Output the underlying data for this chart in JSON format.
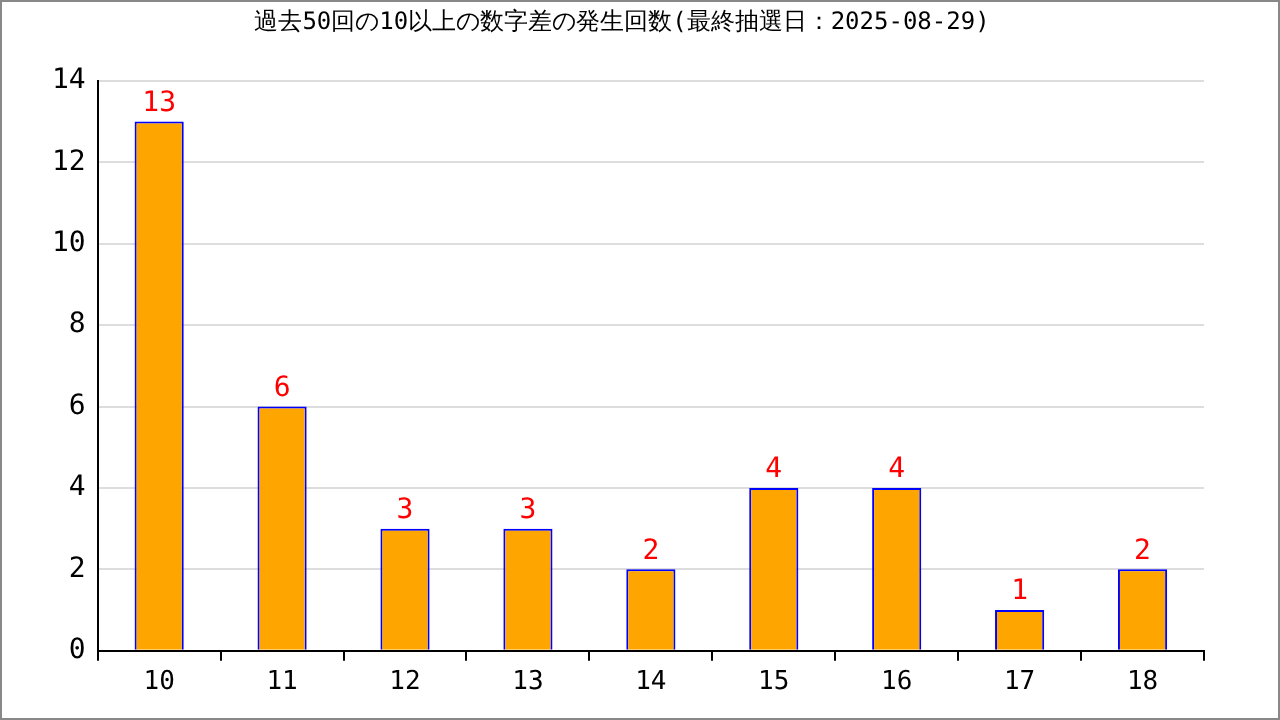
{
  "chart_data": {
    "type": "bar",
    "title": "過去50回の10以上の数字差の発生回数(最終抽選日：2025-08-29)",
    "categories": [
      "10",
      "11",
      "12",
      "13",
      "14",
      "15",
      "16",
      "17",
      "18"
    ],
    "values": [
      13,
      6,
      3,
      3,
      2,
      4,
      4,
      1,
      2
    ],
    "color": "#ffa500",
    "ylim": [
      0,
      14
    ],
    "yticks": [
      0,
      2,
      4,
      6,
      8,
      10,
      12,
      14
    ],
    "grid": "y",
    "data_labels": true,
    "legend": false
  }
}
